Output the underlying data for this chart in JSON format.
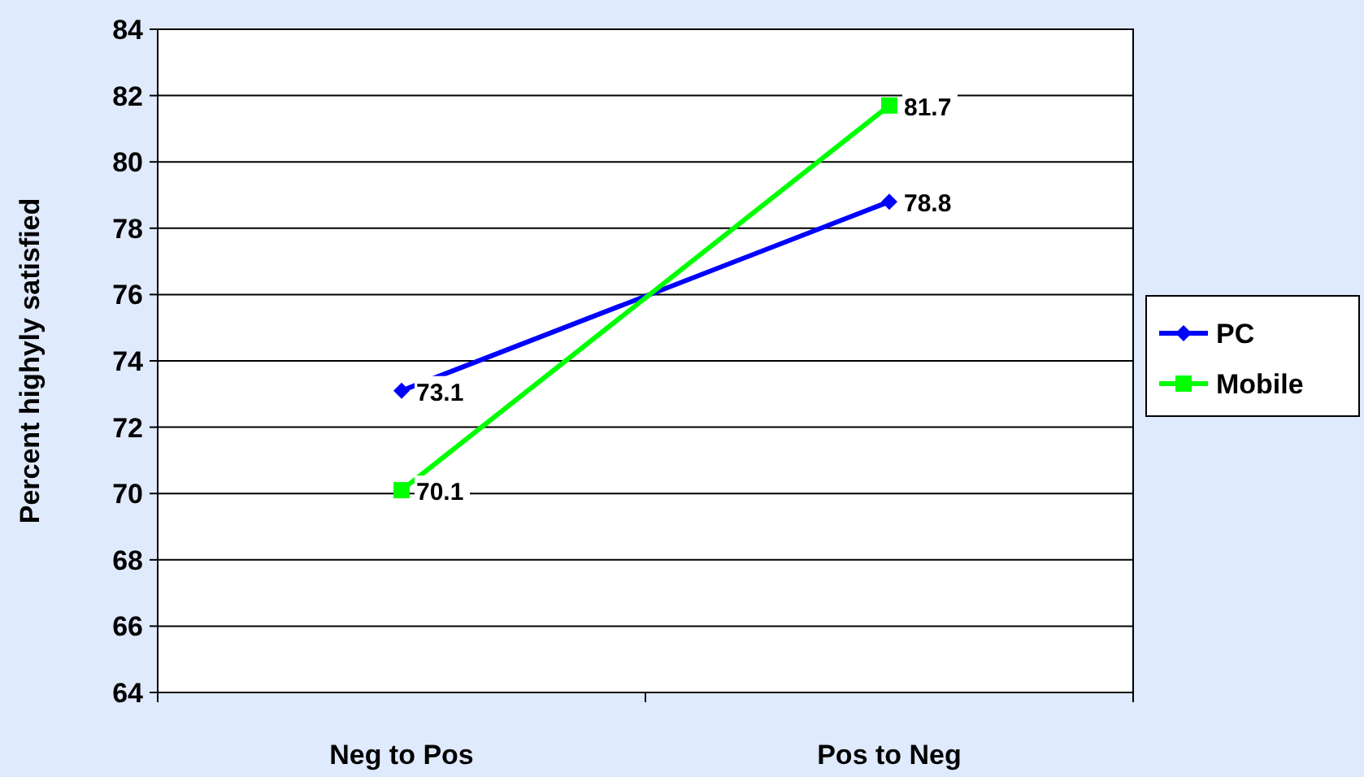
{
  "chart_data": {
    "type": "line",
    "ylabel": "Percent highyly satisfied",
    "categories": [
      "Neg to Pos",
      "Pos to Neg"
    ],
    "series": [
      {
        "name": "PC",
        "color": "#0000ff",
        "values": [
          73.1,
          78.8
        ],
        "marker": "diamond"
      },
      {
        "name": "Mobile",
        "color": "#00ff00",
        "values": [
          70.1,
          81.7
        ],
        "marker": "square"
      }
    ],
    "ylim": [
      64,
      84
    ],
    "yticks": [
      64,
      66,
      68,
      70,
      72,
      74,
      76,
      78,
      80,
      82,
      84
    ],
    "grid": "y",
    "legend": "right",
    "data_labels": true
  }
}
